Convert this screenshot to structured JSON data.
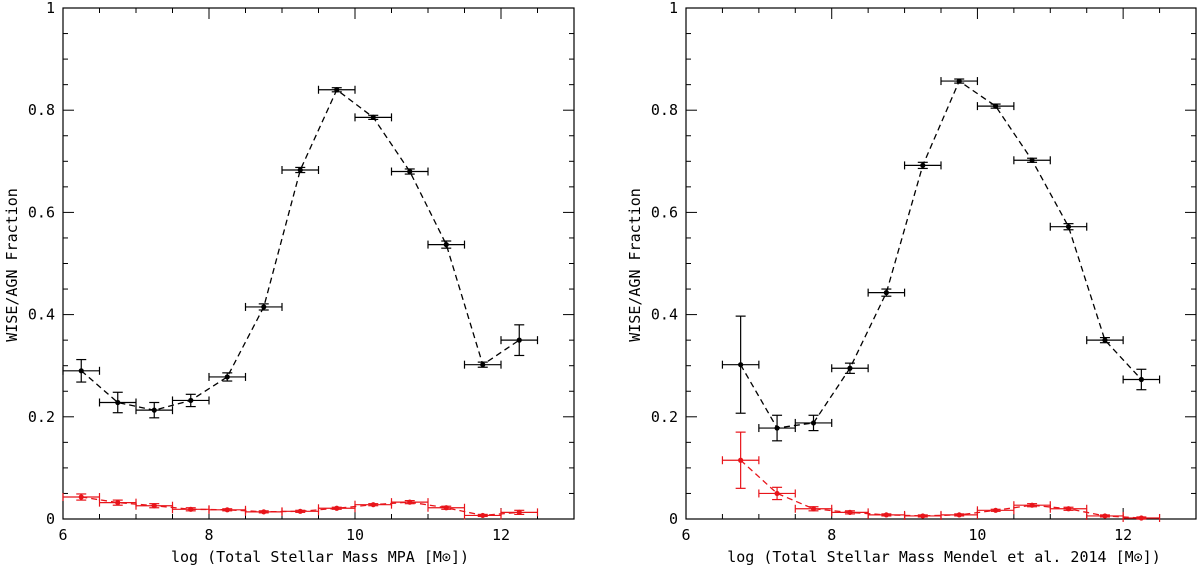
{
  "chart_data": [
    {
      "type": "line",
      "title": "",
      "xlabel": "log (Total Stellar Mass MPA [M⊙])",
      "ylabel": "WISE/AGN Fraction",
      "xlim": [
        6,
        13
      ],
      "ylim": [
        0,
        1
      ],
      "xticks": [
        6,
        8,
        10,
        12
      ],
      "yticks": [
        0,
        0.2,
        0.4,
        0.6,
        0.8,
        1
      ],
      "xtick_labels": [
        "6",
        "8",
        "10",
        "12"
      ],
      "ytick_labels": [
        "0",
        "0.2",
        "0.4",
        "0.6",
        "0.8",
        "1"
      ],
      "x_bin_halfwidth": 0.25,
      "series": [
        {
          "name": "black",
          "color": "#000000",
          "line_style": "dashed",
          "x": [
            6.25,
            6.75,
            7.25,
            7.75,
            8.25,
            8.75,
            9.25,
            9.75,
            10.25,
            10.75,
            11.25,
            11.75,
            12.25
          ],
          "values": [
            0.29,
            0.228,
            0.213,
            0.232,
            0.278,
            0.415,
            0.683,
            0.84,
            0.786,
            0.68,
            0.537,
            0.302,
            0.35
          ],
          "errors": [
            0.022,
            0.02,
            0.015,
            0.012,
            0.008,
            0.006,
            0.005,
            0.004,
            0.004,
            0.005,
            0.007,
            0.005,
            0.03
          ]
        },
        {
          "name": "red",
          "color": "#e8141a",
          "line_style": "dashed",
          "x": [
            6.25,
            6.75,
            7.25,
            7.75,
            8.25,
            8.75,
            9.25,
            9.75,
            10.25,
            10.75,
            11.25,
            11.75,
            12.25
          ],
          "values": [
            0.043,
            0.032,
            0.026,
            0.019,
            0.018,
            0.014,
            0.015,
            0.021,
            0.028,
            0.033,
            0.022,
            0.007,
            0.013
          ],
          "errors": [
            0.006,
            0.005,
            0.004,
            0.003,
            0.002,
            0.002,
            0.002,
            0.002,
            0.002,
            0.003,
            0.003,
            0.002,
            0.004
          ]
        }
      ]
    },
    {
      "type": "line",
      "title": "",
      "xlabel": "log (Total Stellar Mass Mendel et al. 2014 [M⊙])",
      "ylabel": "WISE/AGN Fraction",
      "xlim": [
        6,
        13
      ],
      "ylim": [
        0,
        1
      ],
      "xticks": [
        6,
        8,
        10,
        12
      ],
      "yticks": [
        0,
        0.2,
        0.4,
        0.6,
        0.8,
        1
      ],
      "xtick_labels": [
        "6",
        "8",
        "10",
        "12"
      ],
      "ytick_labels": [
        "0",
        "0.2",
        "0.4",
        "0.6",
        "0.8",
        "1"
      ],
      "x_bin_halfwidth": 0.25,
      "series": [
        {
          "name": "black",
          "color": "#000000",
          "line_style": "dashed",
          "x": [
            6.75,
            7.25,
            7.75,
            8.25,
            8.75,
            9.25,
            9.75,
            10.25,
            10.75,
            11.25,
            11.75,
            12.25
          ],
          "values": [
            0.302,
            0.178,
            0.188,
            0.295,
            0.443,
            0.692,
            0.857,
            0.808,
            0.702,
            0.572,
            0.35,
            0.273
          ],
          "errors": [
            0.095,
            0.025,
            0.015,
            0.01,
            0.007,
            0.006,
            0.004,
            0.004,
            0.004,
            0.006,
            0.005,
            0.02
          ]
        },
        {
          "name": "red",
          "color": "#e8141a",
          "line_style": "dashed",
          "x": [
            6.75,
            7.25,
            7.75,
            8.25,
            8.75,
            9.25,
            9.75,
            10.25,
            10.75,
            11.25,
            11.75,
            12.25
          ],
          "values": [
            0.115,
            0.05,
            0.02,
            0.013,
            0.008,
            0.006,
            0.008,
            0.017,
            0.027,
            0.02,
            0.006,
            0.002
          ],
          "errors": [
            0.055,
            0.012,
            0.004,
            0.003,
            0.002,
            0.002,
            0.002,
            0.002,
            0.003,
            0.003,
            0.002,
            0.002
          ]
        }
      ]
    }
  ]
}
